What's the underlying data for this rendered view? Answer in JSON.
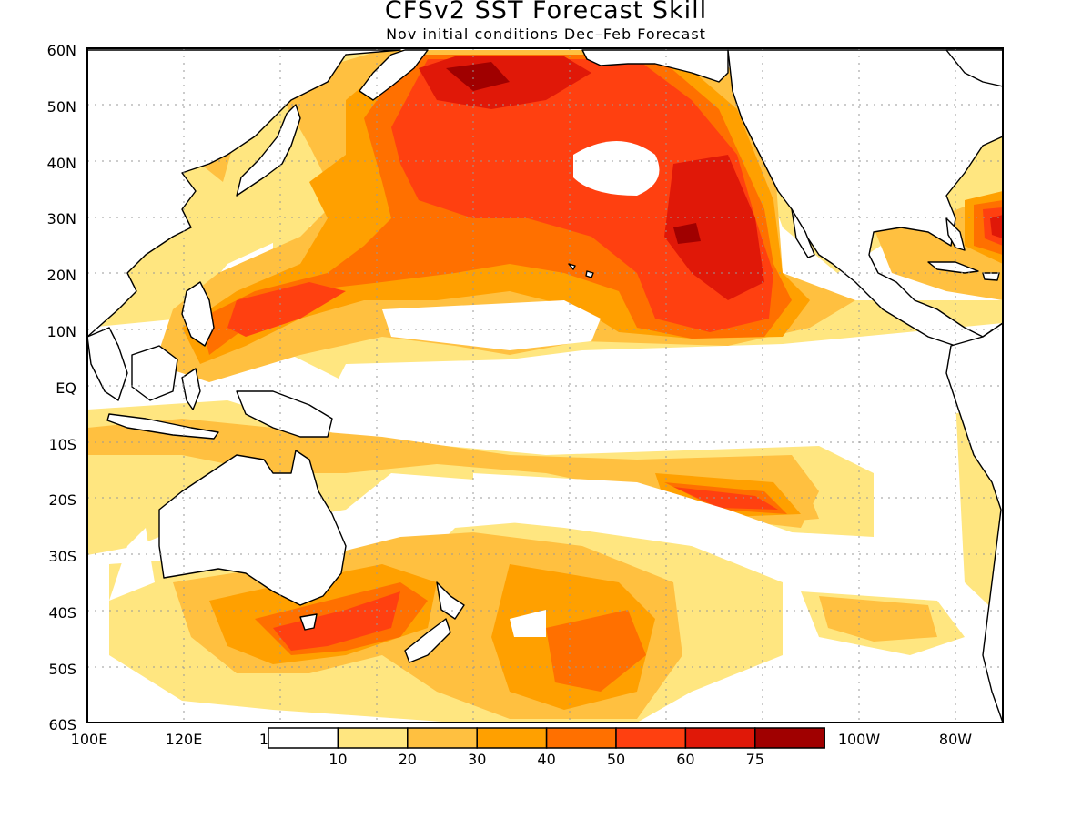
{
  "title": "CFSv2 SST Forecast Skill",
  "subtitle": "Nov initial conditions   Dec–Feb Forecast",
  "lat_labels": [
    "60N",
    "50N",
    "40N",
    "30N",
    "20N",
    "10N",
    "EQ",
    "10S",
    "20S",
    "30S",
    "40S",
    "50S",
    "60S"
  ],
  "lon_labels": [
    "100E",
    "120E",
    "1",
    "100W",
    "80W"
  ],
  "legend": {
    "labels": [
      "10",
      "20",
      "30",
      "40",
      "50",
      "60",
      "75"
    ],
    "colors": [
      "#ffffff",
      "#ffe680",
      "#ffc040",
      "#ffa000",
      "#ff7000",
      "#ff4010",
      "#e01808",
      "#a00000"
    ]
  },
  "colors": {
    "land": "#ffffff",
    "coast": "#000000",
    "grid": "#999999"
  }
}
